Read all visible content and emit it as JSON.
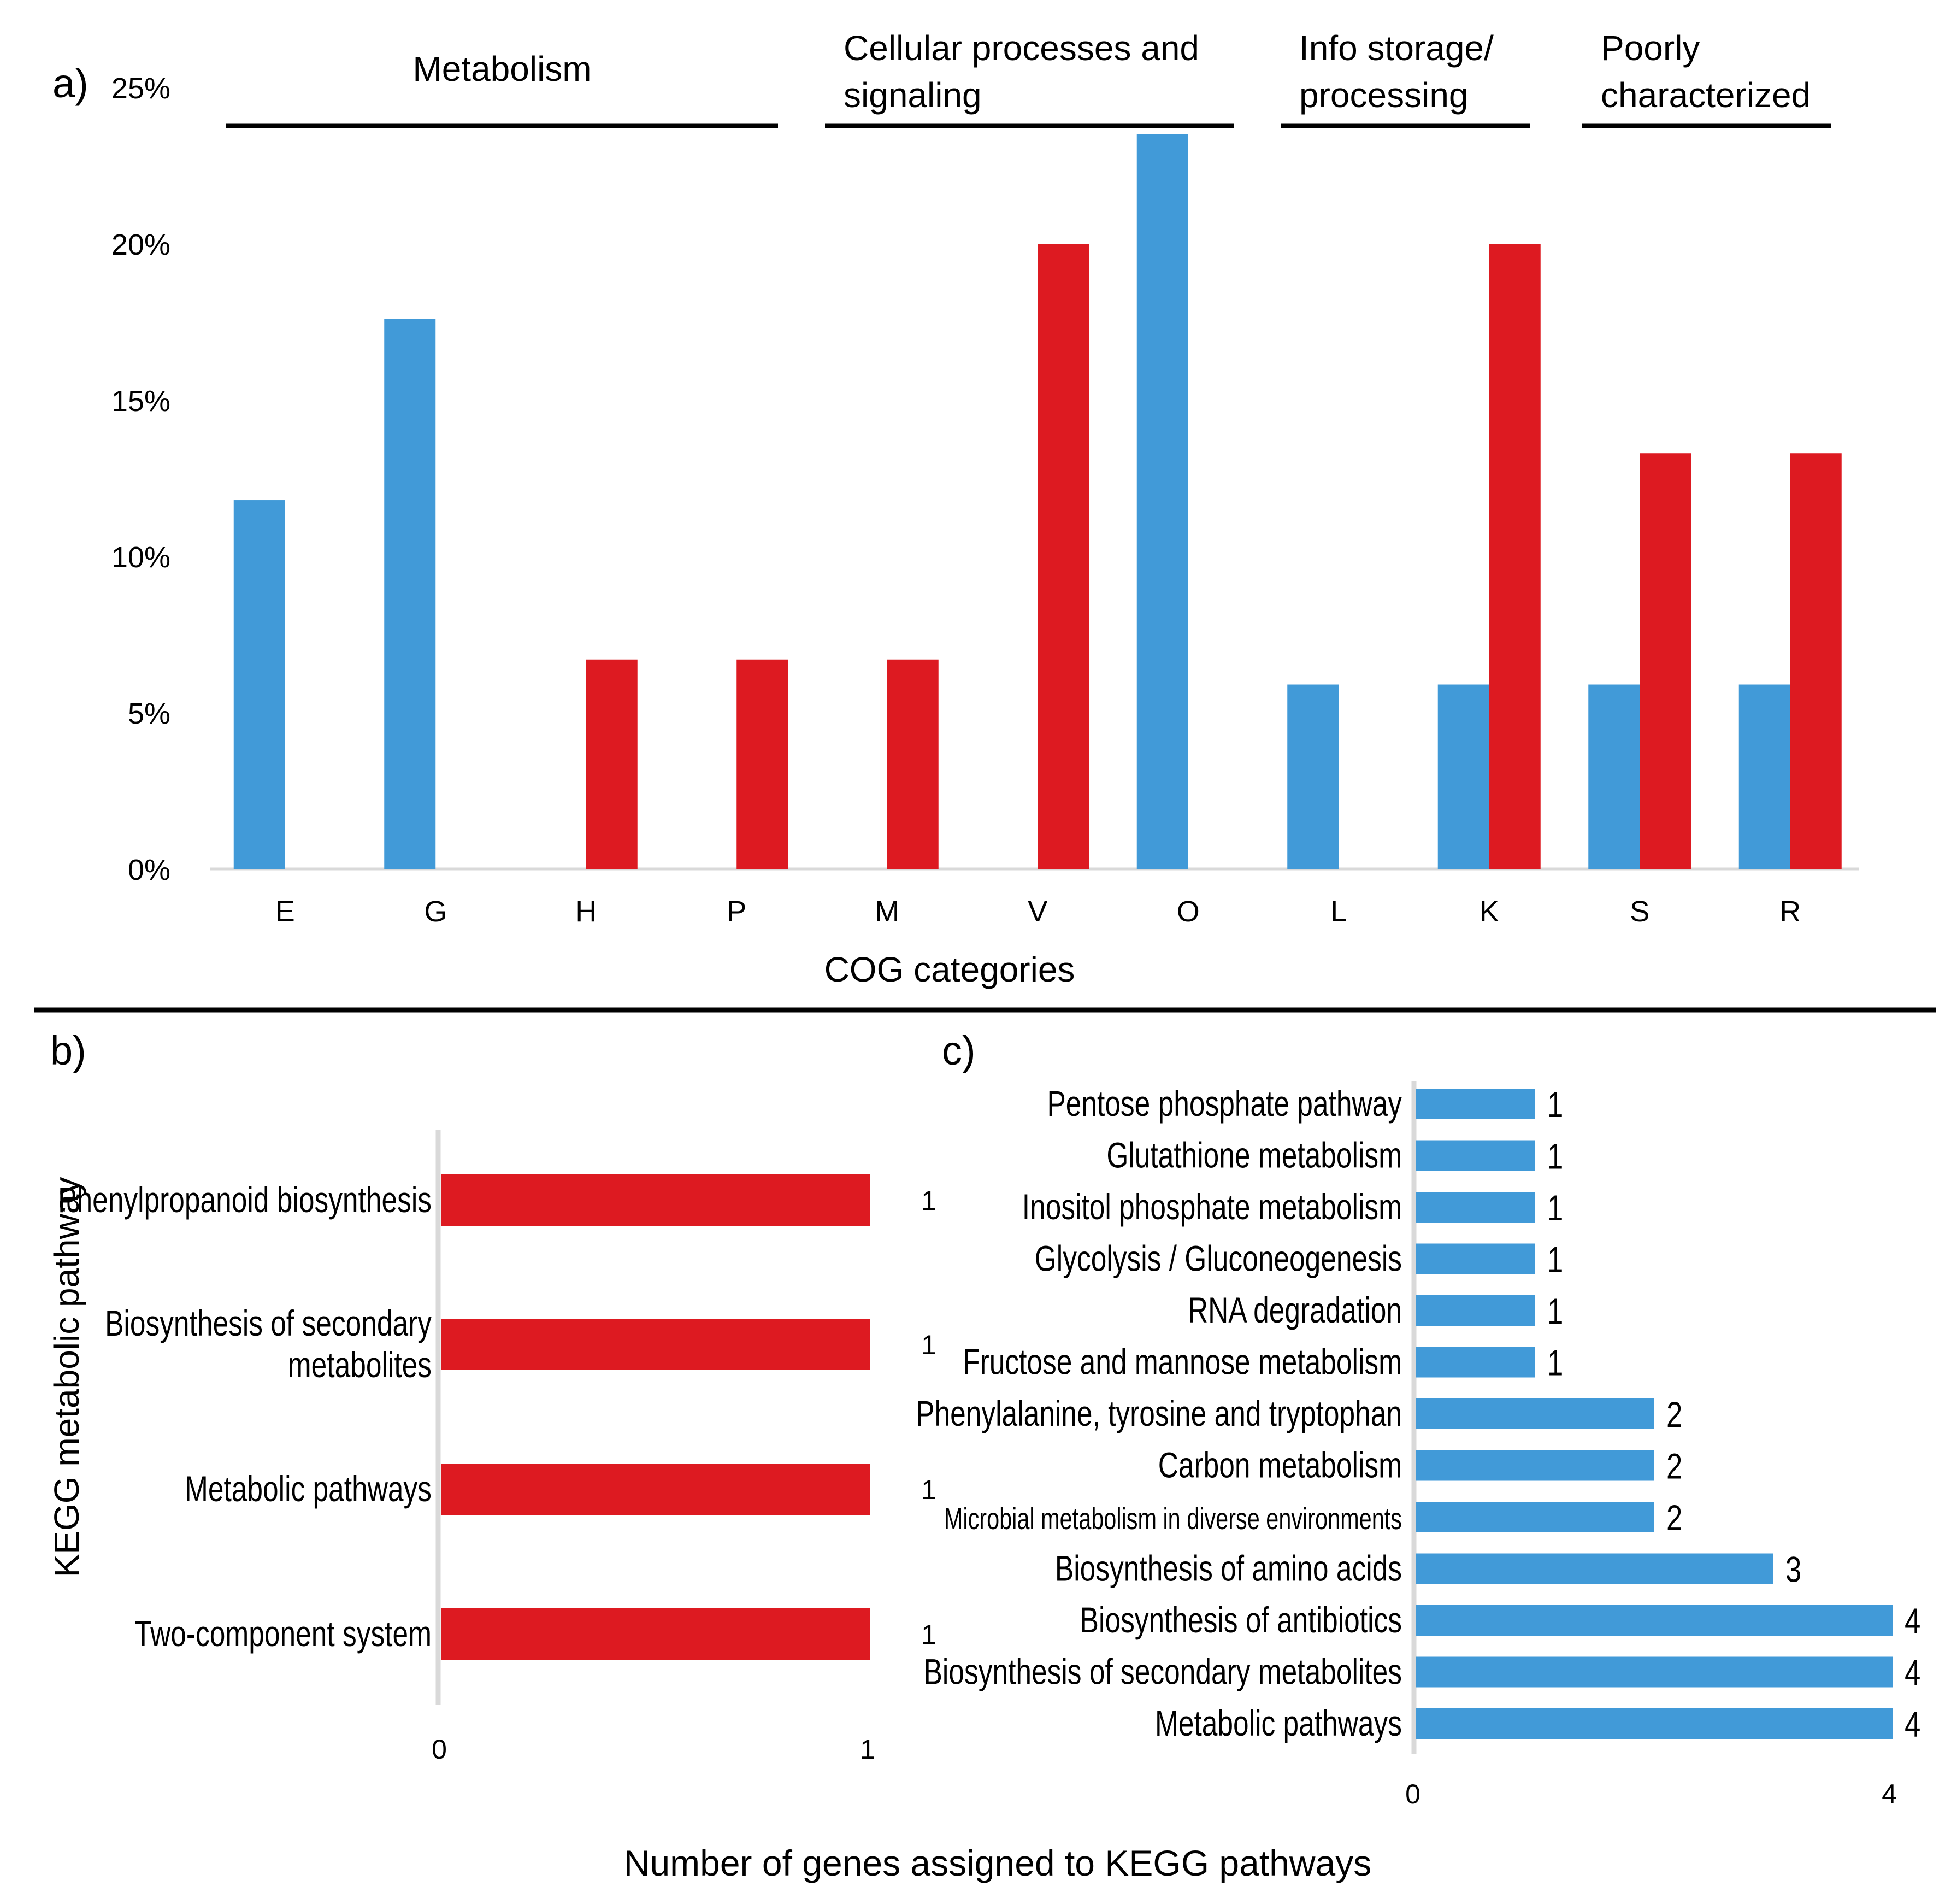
{
  "panel_labels": {
    "a": "a)",
    "b": "b)",
    "c": "c)"
  },
  "colors": {
    "blue": "#419ad8",
    "red": "#dd1a21",
    "axis": "#d9d9d9",
    "text": "#000000"
  },
  "common_xlabel": "Number of genes assigned to KEGG pathways",
  "chart_data": [
    {
      "id": "a",
      "type": "bar",
      "title": "",
      "xlabel": "COG categories",
      "ylabel": "",
      "ylim": [
        0,
        25
      ],
      "ytick_values": [
        0,
        5,
        10,
        15,
        20,
        25
      ],
      "ytick_labels": [
        "0%",
        "5%",
        "10%",
        "15%",
        "20%",
        "25%"
      ],
      "categories": [
        "E",
        "G",
        "H",
        "P",
        "M",
        "V",
        "O",
        "L",
        "K",
        "S",
        "R"
      ],
      "series": [
        {
          "name": "blue",
          "color": "#419ad8",
          "values": [
            11.8,
            17.6,
            0,
            0,
            0,
            0,
            23.5,
            5.9,
            5.9,
            5.9,
            5.9
          ]
        },
        {
          "name": "red",
          "color": "#dd1a21",
          "values": [
            0,
            0,
            6.7,
            6.7,
            6.7,
            20.0,
            0,
            0,
            20.0,
            13.3,
            13.3
          ]
        }
      ],
      "groups": [
        {
          "label_lines": [
            "Metabolism"
          ],
          "from": "E",
          "to": "P"
        },
        {
          "label_lines": [
            "Cellular processes and",
            "signaling"
          ],
          "from": "M",
          "to": "O"
        },
        {
          "label_lines": [
            "Info storage/",
            "processing"
          ],
          "from": "L",
          "to": "K"
        },
        {
          "label_lines": [
            "Poorly",
            "characterized"
          ],
          "from": "S",
          "to": "R"
        }
      ]
    },
    {
      "id": "b",
      "type": "bar",
      "orientation": "horizontal",
      "title": "",
      "ylabel": "KEGG metabolic pathway",
      "xlim": [
        0,
        1
      ],
      "xtick_labels": [
        "0",
        "1"
      ],
      "categories": [
        [
          "Phenylpropanoid biosynthesis"
        ],
        [
          "Biosynthesis of secondary",
          "metabolites"
        ],
        [
          "Metabolic pathways"
        ],
        [
          "Two-component system"
        ]
      ],
      "values": [
        1,
        1,
        1,
        1
      ],
      "value_labels": [
        "1",
        "1",
        "1",
        "1"
      ],
      "color": "#dd1a21"
    },
    {
      "id": "c",
      "type": "bar",
      "orientation": "horizontal",
      "title": "",
      "xlim": [
        0,
        4
      ],
      "xtick_labels": [
        "0",
        "4"
      ],
      "categories": [
        "Pentose phosphate pathway",
        "Glutathione metabolism",
        "Inositol phosphate metabolism",
        "Glycolysis / Gluconeogenesis",
        "RNA degradation",
        "Fructose and mannose metabolism",
        "Phenylalanine, tyrosine and tryptophan",
        "Carbon metabolism",
        "Microbial metabolism in diverse environments",
        "Biosynthesis of amino acids",
        "Biosynthesis of antibiotics",
        "Biosynthesis of secondary metabolites",
        "Metabolic pathways"
      ],
      "values": [
        1,
        1,
        1,
        1,
        1,
        1,
        2,
        2,
        2,
        3,
        4,
        4,
        4
      ],
      "value_labels": [
        "1",
        "1",
        "1",
        "1",
        "1",
        "1",
        "2",
        "2",
        "2",
        "3",
        "4",
        "4",
        "4"
      ],
      "color": "#419ad8"
    }
  ]
}
